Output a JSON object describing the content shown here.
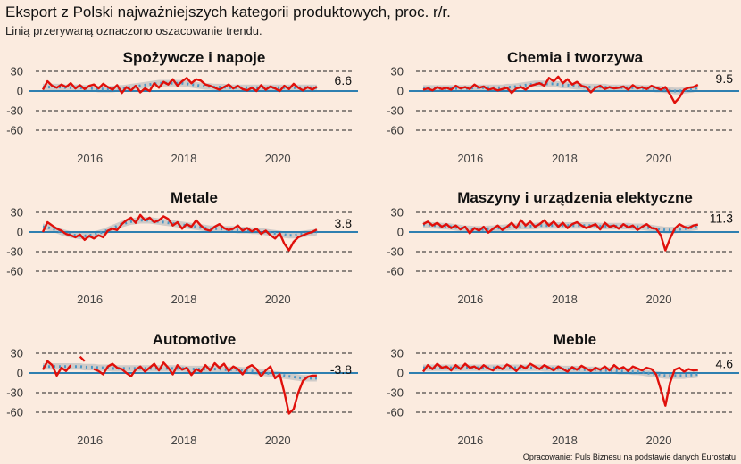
{
  "title": "Eksport z Polski najważniejszych kategorii produktowych, proc. r/r.",
  "subtitle": "Linią przerywaną oznaczono oszacowanie trendu.",
  "source": "Opracowanie: Puls Biznesu na podstawie danych Eurostatu",
  "colors": {
    "background": "#fbebdf",
    "actual_line": "#e0100b",
    "trend_line": "#4d97c4",
    "band": "#c7c6c4",
    "zero_line": "#2f7fb0",
    "grid": "#222222"
  },
  "chart_data": [
    {
      "type": "line",
      "title": "Spożywcze i napoje",
      "ylim": [
        -70,
        38
      ],
      "yticks": [
        30,
        0,
        -30,
        -60
      ],
      "xlim": [
        2015.0,
        2021.25
      ],
      "xticks": [
        2016,
        2018,
        2020
      ],
      "end_label": "6.6",
      "series": [
        {
          "values": [
            2,
            15,
            8,
            5,
            10,
            6,
            12,
            4,
            9,
            3,
            8,
            10,
            4,
            11,
            6,
            2,
            9,
            -3,
            6,
            1,
            8,
            -2,
            4,
            0,
            12,
            5,
            14,
            10,
            18,
            8,
            15,
            20,
            12,
            18,
            16,
            10,
            8,
            5,
            2,
            6,
            10,
            4,
            8,
            3,
            1,
            5,
            0,
            9,
            2,
            7,
            4,
            0,
            8,
            3,
            11,
            5,
            1,
            6,
            2,
            6.6
          ]
        },
        {
          "type": "trend",
          "values": [
            6,
            6,
            6,
            6,
            6,
            5,
            5,
            5,
            5,
            4,
            4,
            4,
            3,
            3,
            3,
            3,
            4,
            4,
            5,
            6,
            7,
            8,
            9,
            10,
            11,
            12,
            12,
            12,
            12,
            12,
            12,
            11,
            10,
            9,
            8,
            7,
            7,
            6,
            6,
            6,
            5,
            5,
            5,
            5,
            5,
            5,
            5,
            5,
            5,
            5,
            5,
            5,
            5,
            5,
            5,
            5,
            5,
            5,
            5,
            5
          ]
        }
      ]
    },
    {
      "type": "line",
      "title": "Chemia i tworzywa",
      "ylim": [
        -70,
        38
      ],
      "yticks": [
        30,
        0,
        -30,
        -60
      ],
      "xlim": [
        2015.0,
        2021.25
      ],
      "xticks": [
        2016,
        2018,
        2020
      ],
      "end_label": "9.5",
      "series": [
        {
          "values": [
            2,
            4,
            1,
            6,
            3,
            5,
            2,
            8,
            4,
            6,
            3,
            10,
            5,
            7,
            2,
            4,
            1,
            3,
            5,
            -3,
            4,
            6,
            2,
            8,
            10,
            12,
            8,
            20,
            15,
            22,
            12,
            18,
            10,
            14,
            8,
            6,
            -2,
            5,
            8,
            3,
            6,
            4,
            5,
            7,
            2,
            9,
            4,
            6,
            3,
            8,
            5,
            2,
            6,
            -5,
            -18,
            -10,
            2,
            5,
            6,
            9.5
          ]
        },
        {
          "type": "trend",
          "values": [
            4,
            4,
            4,
            4,
            4,
            4,
            4,
            4,
            4,
            4,
            4,
            5,
            5,
            5,
            5,
            5,
            5,
            5,
            6,
            6,
            7,
            8,
            9,
            10,
            11,
            11,
            11,
            11,
            11,
            10,
            9,
            9,
            8,
            7,
            7,
            6,
            6,
            6,
            6,
            6,
            5,
            5,
            5,
            5,
            5,
            5,
            5,
            4,
            4,
            4,
            3,
            3,
            2,
            1,
            0,
            0,
            1,
            2,
            3,
            5
          ]
        }
      ]
    },
    {
      "type": "line",
      "title": "Metale",
      "ylim": [
        -70,
        38
      ],
      "yticks": [
        30,
        0,
        -30,
        -60
      ],
      "xlim": [
        2015.0,
        2021.25
      ],
      "xticks": [
        2016,
        2018,
        2020
      ],
      "end_label": "3.8",
      "series": [
        {
          "values": [
            0,
            15,
            10,
            5,
            2,
            -3,
            -5,
            -8,
            -4,
            -12,
            -6,
            -10,
            -5,
            -8,
            2,
            5,
            3,
            12,
            18,
            22,
            14,
            26,
            18,
            22,
            15,
            18,
            24,
            20,
            10,
            15,
            5,
            12,
            8,
            18,
            10,
            4,
            2,
            8,
            12,
            6,
            3,
            5,
            10,
            2,
            6,
            1,
            5,
            -3,
            2,
            -5,
            -10,
            -2,
            -18,
            -28,
            -15,
            -8,
            -5,
            -2,
            0,
            3.8
          ]
        },
        {
          "type": "trend",
          "values": [
            8,
            7,
            5,
            3,
            0,
            -2,
            -4,
            -5,
            -6,
            -6,
            -5,
            -4,
            -2,
            0,
            3,
            6,
            9,
            12,
            14,
            16,
            17,
            18,
            18,
            18,
            17,
            16,
            15,
            14,
            13,
            12,
            11,
            10,
            9,
            8,
            7,
            6,
            5,
            5,
            5,
            4,
            4,
            4,
            3,
            3,
            3,
            2,
            2,
            1,
            0,
            -1,
            -2,
            -3,
            -4,
            -5,
            -5,
            -4,
            -3,
            -2,
            -1,
            0
          ]
        }
      ]
    },
    {
      "type": "line",
      "title": "Maszyny i urządzenia elektyczne",
      "ylim": [
        -70,
        38
      ],
      "yticks": [
        30,
        0,
        -30,
        -60
      ],
      "xlim": [
        2015.0,
        2021.25
      ],
      "xticks": [
        2016,
        2018,
        2020
      ],
      "end_label": "11.3",
      "series": [
        {
          "values": [
            12,
            16,
            10,
            14,
            8,
            12,
            6,
            10,
            4,
            8,
            -2,
            6,
            2,
            8,
            -1,
            5,
            10,
            3,
            8,
            14,
            6,
            18,
            10,
            16,
            8,
            12,
            18,
            10,
            16,
            8,
            14,
            6,
            12,
            15,
            10,
            6,
            9,
            12,
            4,
            14,
            8,
            10,
            5,
            12,
            7,
            10,
            3,
            8,
            12,
            6,
            5,
            -5,
            -28,
            -10,
            5,
            12,
            8,
            6,
            10,
            11.3
          ]
        },
        {
          "type": "trend",
          "values": [
            11,
            11,
            10,
            10,
            9,
            9,
            8,
            7,
            6,
            5,
            5,
            4,
            4,
            4,
            5,
            5,
            6,
            6,
            7,
            8,
            8,
            9,
            9,
            9,
            9,
            10,
            10,
            10,
            10,
            10,
            10,
            10,
            10,
            10,
            10,
            10,
            10,
            10,
            9,
            9,
            9,
            9,
            9,
            9,
            9,
            8,
            8,
            8,
            7,
            6,
            5,
            4,
            3,
            3,
            3,
            4,
            5,
            6,
            7,
            8
          ]
        }
      ]
    },
    {
      "type": "line",
      "title": "Automotive",
      "ylim": [
        -70,
        38
      ],
      "yticks": [
        30,
        0,
        -30,
        -60
      ],
      "xlim": [
        2015.0,
        2021.25
      ],
      "xticks": [
        2016,
        2018,
        2020
      ],
      "end_label": "-3.8",
      "series": [
        {
          "values": [
            5,
            18,
            12,
            -4,
            8,
            3,
            12,
            null,
            25,
            18,
            null,
            6,
            3,
            -2,
            10,
            14,
            8,
            6,
            0,
            -5,
            5,
            10,
            2,
            8,
            14,
            4,
            16,
            8,
            -2,
            12,
            5,
            8,
            -3,
            6,
            2,
            12,
            4,
            15,
            8,
            14,
            3,
            10,
            6,
            -2,
            8,
            12,
            6,
            -5,
            4,
            10,
            -8,
            -2,
            -30,
            -62,
            -55,
            -30,
            -12,
            -6,
            -4,
            -3.8
          ]
        },
        {
          "type": "trend",
          "values": [
            10,
            10,
            10,
            10,
            10,
            10,
            10,
            10,
            10,
            9,
            9,
            9,
            8,
            8,
            8,
            7,
            7,
            7,
            7,
            7,
            7,
            7,
            7,
            7,
            7,
            7,
            7,
            7,
            7,
            7,
            7,
            6,
            6,
            6,
            6,
            6,
            6,
            6,
            6,
            5,
            5,
            5,
            5,
            4,
            4,
            3,
            2,
            1,
            0,
            -1,
            -2,
            -3,
            -4,
            -5,
            -6,
            -7,
            -8,
            -8,
            -8,
            -8
          ]
        }
      ]
    },
    {
      "type": "line",
      "title": "Meble",
      "ylim": [
        -70,
        38
      ],
      "yticks": [
        30,
        0,
        -30,
        -60
      ],
      "xlim": [
        2015.0,
        2021.25
      ],
      "xticks": [
        2016,
        2018,
        2020
      ],
      "end_label": "4.6",
      "series": [
        {
          "values": [
            2,
            12,
            6,
            14,
            8,
            10,
            4,
            12,
            6,
            14,
            8,
            10,
            5,
            12,
            7,
            4,
            10,
            6,
            13,
            9,
            3,
            11,
            7,
            14,
            10,
            6,
            12,
            8,
            4,
            10,
            6,
            2,
            9,
            5,
            11,
            7,
            3,
            8,
            5,
            10,
            4,
            12,
            6,
            9,
            3,
            10,
            7,
            4,
            8,
            6,
            -2,
            -25,
            -50,
            -15,
            5,
            8,
            2,
            6,
            4,
            4.6
          ]
        },
        {
          "type": "trend",
          "values": [
            8,
            8,
            8,
            8,
            8,
            8,
            8,
            8,
            8,
            8,
            8,
            8,
            8,
            8,
            8,
            8,
            8,
            8,
            8,
            8,
            8,
            8,
            8,
            8,
            8,
            8,
            7,
            7,
            7,
            7,
            6,
            6,
            6,
            6,
            5,
            5,
            5,
            5,
            4,
            4,
            4,
            4,
            3,
            3,
            3,
            2,
            2,
            1,
            0,
            -1,
            -2,
            -3,
            -4,
            -4,
            -4,
            -4,
            -4,
            -3,
            -3,
            -2
          ]
        }
      ]
    }
  ]
}
